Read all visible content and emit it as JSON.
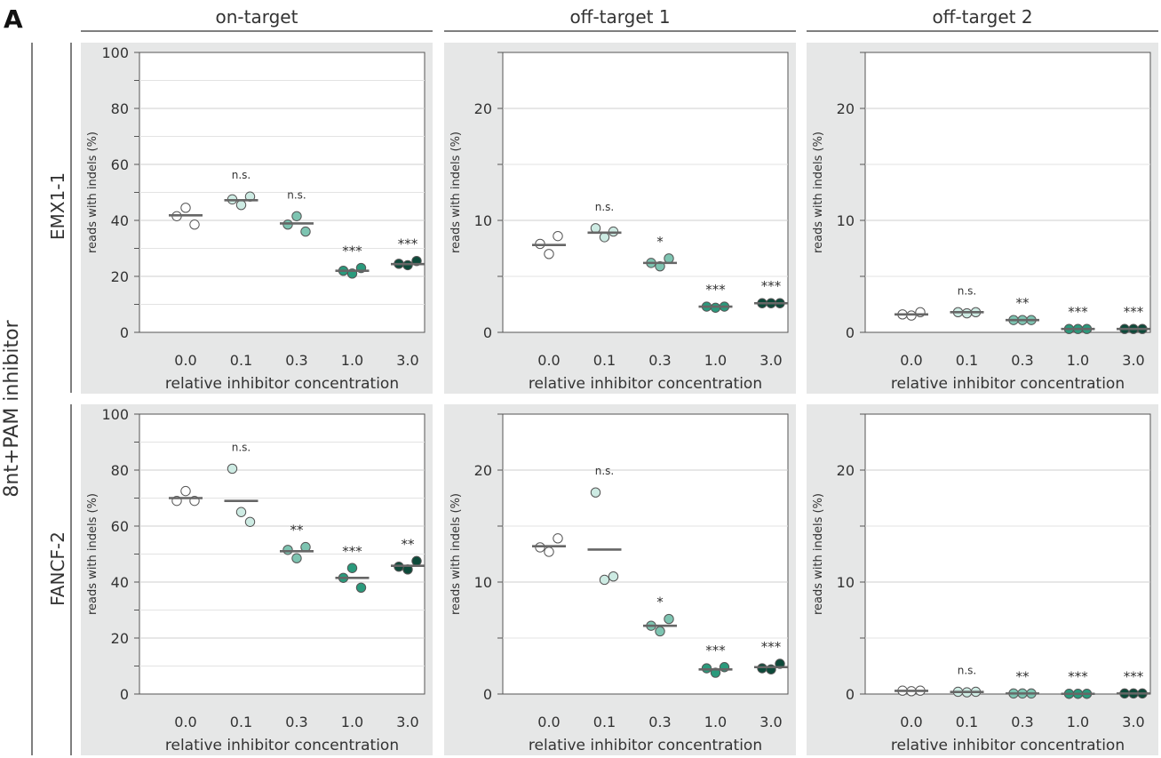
{
  "panel_letter": "A",
  "inhibitor_label": "8nt+PAM inhibitor",
  "columns": [
    "on-target",
    "off-target 1",
    "off-target 2"
  ],
  "rows": [
    "EMX1-1",
    "FANCF-2"
  ],
  "ylabel": "reads with indels (%)",
  "xlabel": "relative inhibitor concentration",
  "x_categories": [
    "0.0",
    "0.1",
    "0.3",
    "1.0",
    "3.0"
  ],
  "group_colors": [
    "#ffffff",
    "#cdebe3",
    "#7dc4b1",
    "#2a9a7c",
    "#0d4a3a"
  ],
  "chart_data": [
    {
      "type": "scatter",
      "row": "EMX1-1",
      "column": "on-target",
      "ylim": [
        0,
        100
      ],
      "yticks": [
        0,
        20,
        40,
        60,
        80,
        100
      ],
      "points": [
        [
          41.5,
          44.5,
          38.5
        ],
        [
          47.5,
          45.5,
          48.5
        ],
        [
          38.5,
          41.5,
          36
        ],
        [
          22,
          21,
          23
        ],
        [
          24.5,
          24,
          25.5
        ]
      ],
      "means": [
        41.8,
        47.2,
        38.9,
        22.0,
        24.4
      ],
      "significance": [
        "",
        "n.s.",
        "n.s.",
        "***",
        "***"
      ]
    },
    {
      "type": "scatter",
      "row": "EMX1-1",
      "column": "off-target 1",
      "ylim": [
        0,
        25
      ],
      "yticks": [
        0,
        10,
        20
      ],
      "points": [
        [
          7.9,
          7,
          8.6
        ],
        [
          9.3,
          8.5,
          9
        ],
        [
          6.2,
          5.9,
          6.6
        ],
        [
          2.3,
          2.2,
          2.3
        ],
        [
          2.6,
          2.6,
          2.6
        ]
      ],
      "means": [
        7.8,
        8.9,
        6.2,
        2.3,
        2.6
      ],
      "significance": [
        "",
        "n.s.",
        "*",
        "***",
        "***"
      ]
    },
    {
      "type": "scatter",
      "row": "EMX1-1",
      "column": "off-target 2",
      "ylim": [
        0,
        25
      ],
      "yticks": [
        0,
        10,
        20
      ],
      "points": [
        [
          1.6,
          1.5,
          1.8
        ],
        [
          1.8,
          1.7,
          1.8
        ],
        [
          1.1,
          1.1,
          1.1
        ],
        [
          0.3,
          0.3,
          0.3
        ],
        [
          0.3,
          0.3,
          0.3
        ]
      ],
      "means": [
        1.6,
        1.8,
        1.1,
        0.3,
        0.3
      ],
      "significance": [
        "",
        "n.s.",
        "**",
        "***",
        "***"
      ]
    },
    {
      "type": "scatter",
      "row": "FANCF-2",
      "column": "on-target",
      "ylim": [
        0,
        100
      ],
      "yticks": [
        0,
        20,
        40,
        60,
        80,
        100
      ],
      "points": [
        [
          69,
          72.5,
          69
        ],
        [
          80.5,
          65,
          61.5
        ],
        [
          51.5,
          48.5,
          52.5
        ],
        [
          41.5,
          45,
          38
        ],
        [
          45.5,
          44.5,
          47.5
        ]
      ],
      "means": [
        70,
        69,
        51,
        41.5,
        45.8
      ],
      "significance": [
        "",
        "n.s.",
        "**",
        "***",
        "**"
      ]
    },
    {
      "type": "scatter",
      "row": "FANCF-2",
      "column": "off-target 1",
      "ylim": [
        0,
        25
      ],
      "yticks": [
        0,
        10,
        20
      ],
      "points": [
        [
          13.1,
          12.7,
          13.9
        ],
        [
          18,
          10.2,
          10.5
        ],
        [
          6.1,
          5.6,
          6.7
        ],
        [
          2.3,
          1.9,
          2.4
        ],
        [
          2.3,
          2.2,
          2.7
        ]
      ],
      "means": [
        13.2,
        12.9,
        6.1,
        2.2,
        2.4
      ],
      "significance": [
        "",
        "n.s.",
        "*",
        "***",
        "***"
      ]
    },
    {
      "type": "scatter",
      "row": "FANCF-2",
      "column": "off-target 2",
      "ylim": [
        0,
        25
      ],
      "yticks": [
        0,
        10,
        20
      ],
      "points": [
        [
          0.3,
          0.25,
          0.3
        ],
        [
          0.2,
          0.15,
          0.2
        ],
        [
          0.05,
          0.05,
          0.05
        ],
        [
          0.02,
          0.02,
          0.02
        ],
        [
          0.05,
          0.05,
          0.05
        ]
      ],
      "means": [
        0.28,
        0.18,
        0.05,
        0.02,
        0.05
      ],
      "significance": [
        "",
        "n.s.",
        "**",
        "***",
        "***"
      ]
    }
  ]
}
